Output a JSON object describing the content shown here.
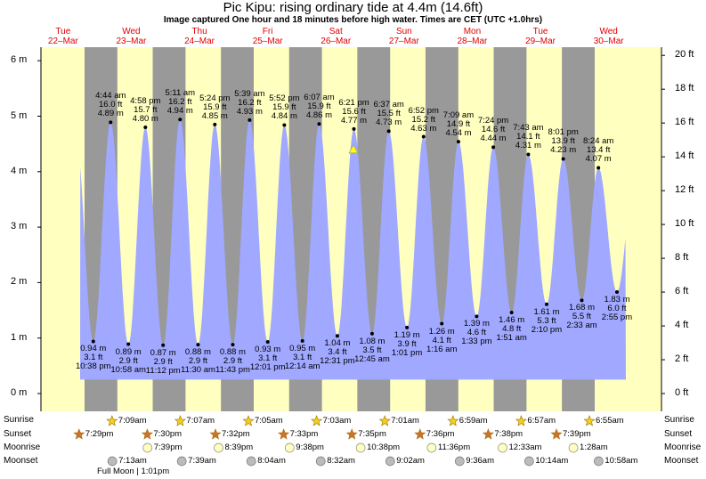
{
  "header": {
    "title": "Pic Kipu: rising  ordinary tide at 4.4m (14.6ft)",
    "subtitle": "Image captured One hour and 18 minutes before high water. Times are CET (UTC +1.0hrs)"
  },
  "days": [
    {
      "name": "Tue",
      "date": "22–Mar"
    },
    {
      "name": "Wed",
      "date": "23–Mar"
    },
    {
      "name": "Thu",
      "date": "24–Mar"
    },
    {
      "name": "Fri",
      "date": "25–Mar"
    },
    {
      "name": "Sat",
      "date": "26–Mar"
    },
    {
      "name": "Sun",
      "date": "27–Mar"
    },
    {
      "name": "Mon",
      "date": "28–Mar"
    },
    {
      "name": "Tue",
      "date": "29–Mar"
    },
    {
      "name": "Wed",
      "date": "30–Mar"
    }
  ],
  "chart_data": {
    "type": "area",
    "ylabel_left_unit": "m",
    "ylabel_right_unit": "ft",
    "ylim_m": [
      -0.3,
      6.3
    ],
    "left_ticks": [
      "0 m",
      "1 m",
      "2 m",
      "3 m",
      "4 m",
      "5 m",
      "6 m"
    ],
    "right_ticks": [
      "0 ft",
      "2 ft",
      "4 ft",
      "6 ft",
      "8 ft",
      "10 ft",
      "12 ft",
      "14 ft",
      "16 ft",
      "18 ft",
      "20 ft"
    ],
    "current_level_m": 4.4,
    "high_tides": [
      {
        "time": "4:44 am",
        "ft": "16.0 ft",
        "m": "4.89 m",
        "day": 23,
        "hour": 4.73
      },
      {
        "time": "4:58 pm",
        "ft": "15.7 ft",
        "m": "4.80 m",
        "day": 23,
        "hour": 16.97
      },
      {
        "time": "5:11 am",
        "ft": "16.2 ft",
        "m": "4.94 m",
        "day": 24,
        "hour": 5.18
      },
      {
        "time": "5:24 pm",
        "ft": "15.9 ft",
        "m": "4.85 m",
        "day": 24,
        "hour": 17.4
      },
      {
        "time": "5:39 am",
        "ft": "16.2 ft",
        "m": "4.93 m",
        "day": 25,
        "hour": 5.65
      },
      {
        "time": "5:52 pm",
        "ft": "15.9 ft",
        "m": "4.84 m",
        "day": 25,
        "hour": 17.87
      },
      {
        "time": "6:07 am",
        "ft": "15.9 ft",
        "m": "4.86 m",
        "day": 26,
        "hour": 6.12
      },
      {
        "time": "6:21 pm",
        "ft": "15.6 ft",
        "m": "4.77 m",
        "day": 26,
        "hour": 18.35
      },
      {
        "time": "6:37 am",
        "ft": "15.5 ft",
        "m": "4.73 m",
        "day": 27,
        "hour": 6.62
      },
      {
        "time": "6:52 pm",
        "ft": "15.2 ft",
        "m": "4.63 m",
        "day": 27,
        "hour": 18.87
      },
      {
        "time": "7:09 am",
        "ft": "14.9 ft",
        "m": "4.54 m",
        "day": 28,
        "hour": 7.15
      },
      {
        "time": "7:24 pm",
        "ft": "14.6 ft",
        "m": "4.44 m",
        "day": 28,
        "hour": 19.4
      },
      {
        "time": "7:43 am",
        "ft": "14.1 ft",
        "m": "4.31 m",
        "day": 29,
        "hour": 7.72
      },
      {
        "time": "8:01 pm",
        "ft": "13.9 ft",
        "m": "4.23 m",
        "day": 29,
        "hour": 20.02
      },
      {
        "time": "8:24 am",
        "ft": "13.4 ft",
        "m": "4.07 m",
        "day": 30,
        "hour": 8.4
      }
    ],
    "low_tides": [
      {
        "time": "10:38 pm",
        "ft": "3.1 ft",
        "m": "0.94 m",
        "day": 22,
        "hour": 22.63
      },
      {
        "time": "10:58 am",
        "ft": "2.9 ft",
        "m": "0.89 m",
        "day": 23,
        "hour": 10.97
      },
      {
        "time": "11:12 pm",
        "ft": "2.9 ft",
        "m": "0.87 m",
        "day": 23,
        "hour": 23.2
      },
      {
        "time": "11:30 am",
        "ft": "2.9 ft",
        "m": "0.88 m",
        "day": 24,
        "hour": 11.5
      },
      {
        "time": "11:43 pm",
        "ft": "2.9 ft",
        "m": "0.88 m",
        "day": 24,
        "hour": 23.72
      },
      {
        "time": "12:01 pm",
        "ft": "3.1 ft",
        "m": "0.93 m",
        "day": 25,
        "hour": 12.02
      },
      {
        "time": "12:14 am",
        "ft": "3.1 ft",
        "m": "0.95 m",
        "day": 26,
        "hour": 0.23
      },
      {
        "time": "12:31 pm",
        "ft": "3.4 ft",
        "m": "1.04 m",
        "day": 26,
        "hour": 12.52
      },
      {
        "time": "12:45 am",
        "ft": "3.5 ft",
        "m": "1.08 m",
        "day": 27,
        "hour": 0.75
      },
      {
        "time": "1:01 pm",
        "ft": "3.9 ft",
        "m": "1.19 m",
        "day": 27,
        "hour": 13.02
      },
      {
        "time": "1:16 am",
        "ft": "4.1 ft",
        "m": "1.26 m",
        "day": 28,
        "hour": 1.27
      },
      {
        "time": "1:33 pm",
        "ft": "4.6 ft",
        "m": "1.39 m",
        "day": 28,
        "hour": 13.55
      },
      {
        "time": "1:51 am",
        "ft": "4.8 ft",
        "m": "1.46 m",
        "day": 29,
        "hour": 1.85
      },
      {
        "time": "2:10 pm",
        "ft": "5.3 ft",
        "m": "1.61 m",
        "day": 29,
        "hour": 14.17
      },
      {
        "time": "2:33 am",
        "ft": "5.5 ft",
        "m": "1.68 m",
        "day": 30,
        "hour": 2.55
      },
      {
        "time": "2:55 pm",
        "ft": "6.0 ft",
        "m": "1.83 m",
        "day": 30,
        "hour": 14.92
      }
    ]
  },
  "astro": {
    "labels": {
      "sunrise": "Sunrise",
      "sunset": "Sunset",
      "moonrise": "Moonrise",
      "moonset": "Moonset"
    },
    "sunrise": [
      "7:09am",
      "7:07am",
      "7:05am",
      "7:03am",
      "7:01am",
      "6:59am",
      "6:57am",
      "6:55am"
    ],
    "sunset": [
      "7:29pm",
      "7:30pm",
      "7:32pm",
      "7:33pm",
      "7:35pm",
      "7:36pm",
      "7:38pm",
      "7:39pm"
    ],
    "moonrise": [
      "7:39pm",
      "8:39pm",
      "9:38pm",
      "10:38pm",
      "11:36pm",
      "12:33am",
      "1:28am"
    ],
    "moonset": [
      "7:13am",
      "7:39am",
      "8:04am",
      "8:32am",
      "9:02am",
      "9:36am",
      "10:14am",
      "10:58am"
    ],
    "full_moon": "Full Moon | 1:01pm"
  },
  "colors": {
    "day": "#ffffc0",
    "night": "#999999",
    "water": "#a0a8ff",
    "day_label": "#e00000",
    "sun": "#f0d020",
    "sunset": "#d07030",
    "moon": "#ffffc0",
    "moonset": "#bbbbbb"
  }
}
